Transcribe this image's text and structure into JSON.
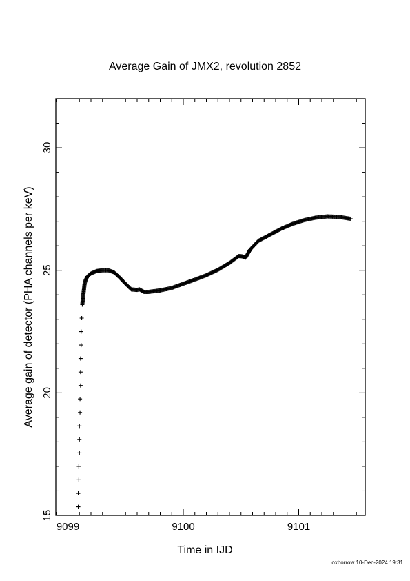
{
  "chart_data": {
    "type": "scatter",
    "title": "Average Gain of JMX2, revolution 2852",
    "xlabel": "Time in IJD",
    "ylabel": "Average gain of detector (PHA channels per keV)",
    "xlim": [
      9098.9,
      9101.6
    ],
    "ylim": [
      15,
      32
    ],
    "xticks": [
      9099,
      9100,
      9101
    ],
    "yticks": [
      15,
      20,
      25,
      30
    ],
    "marker": "+",
    "grid": false,
    "points": [
      [
        9099.09,
        15.35
      ],
      [
        9099.09,
        15.9
      ],
      [
        9099.095,
        16.45
      ],
      [
        9099.095,
        17.0
      ],
      [
        9099.1,
        17.55
      ],
      [
        9099.1,
        18.1
      ],
      [
        9099.1,
        18.65
      ],
      [
        9099.105,
        19.2
      ],
      [
        9099.105,
        19.75
      ],
      [
        9099.11,
        20.3
      ],
      [
        9099.11,
        20.85
      ],
      [
        9099.11,
        21.4
      ],
      [
        9099.115,
        21.95
      ],
      [
        9099.115,
        22.5
      ],
      [
        9099.12,
        23.05
      ],
      [
        9099.125,
        23.6
      ],
      [
        9099.13,
        23.85
      ],
      [
        9099.135,
        24.05
      ],
      [
        9099.14,
        24.25
      ],
      [
        9099.145,
        24.45
      ],
      [
        9099.155,
        24.62
      ],
      [
        9099.17,
        24.75
      ],
      [
        9099.2,
        24.87
      ],
      [
        9099.25,
        24.97
      ],
      [
        9099.3,
        25.0
      ],
      [
        9099.35,
        25.0
      ],
      [
        9099.4,
        24.92
      ],
      [
        9099.45,
        24.7
      ],
      [
        9099.5,
        24.45
      ],
      [
        9099.55,
        24.22
      ],
      [
        9099.6,
        24.2
      ],
      [
        9099.62,
        24.22
      ],
      [
        9099.66,
        24.12
      ],
      [
        9099.7,
        24.12
      ],
      [
        9099.8,
        24.18
      ],
      [
        9099.9,
        24.28
      ],
      [
        9100.0,
        24.45
      ],
      [
        9100.1,
        24.62
      ],
      [
        9100.2,
        24.8
      ],
      [
        9100.3,
        25.02
      ],
      [
        9100.4,
        25.3
      ],
      [
        9100.48,
        25.58
      ],
      [
        9100.51,
        25.57
      ],
      [
        9100.54,
        25.52
      ],
      [
        9100.58,
        25.85
      ],
      [
        9100.65,
        26.2
      ],
      [
        9100.75,
        26.45
      ],
      [
        9100.85,
        26.7
      ],
      [
        9100.95,
        26.9
      ],
      [
        9101.05,
        27.05
      ],
      [
        9101.15,
        27.15
      ],
      [
        9101.25,
        27.2
      ],
      [
        9101.35,
        27.18
      ],
      [
        9101.45,
        27.1
      ]
    ]
  },
  "footer": "oxborrow 10-Dec-2024 19:31"
}
